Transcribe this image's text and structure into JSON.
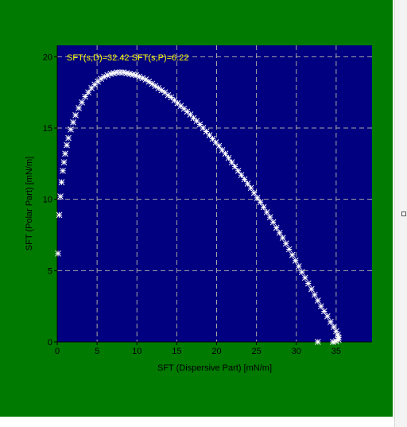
{
  "colors": {
    "panel_background": "#007a00",
    "plot_background": "#000080",
    "marker_color": "#ffffff",
    "annotation_color": "#ffff00",
    "grid_color": "#a8a8a8",
    "axis_text_color": "#000000"
  },
  "chart_data": {
    "type": "scatter",
    "title": "",
    "annotation": "SFT(s,D)=32.42  SFT(s,P)=6.22",
    "xlabel": "SFT (Dispersive Part) [mN/m]",
    "ylabel": "SFT (Polar Part) [mN/m]",
    "xlim": [
      0,
      39.5
    ],
    "ylim": [
      0,
      20.8
    ],
    "xticks": [
      0,
      5,
      10,
      15,
      20,
      25,
      30,
      35
    ],
    "yticks": [
      0,
      5,
      10,
      15,
      20
    ],
    "grid": true,
    "grid_style": "dashed",
    "marker": "asterisk",
    "series": [
      {
        "points": [
          [
            0.1,
            6.2
          ],
          [
            0.25,
            8.9
          ],
          [
            0.4,
            10.2
          ],
          [
            0.55,
            11.2
          ],
          [
            0.7,
            12.0
          ],
          [
            0.85,
            12.6
          ],
          [
            1.0,
            13.2
          ],
          [
            1.2,
            13.8
          ],
          [
            1.4,
            14.3
          ],
          [
            1.7,
            14.9
          ],
          [
            2.0,
            15.4
          ],
          [
            2.3,
            15.9
          ],
          [
            2.7,
            16.4
          ],
          [
            3.1,
            16.8
          ],
          [
            3.5,
            17.2
          ],
          [
            3.9,
            17.5
          ],
          [
            4.3,
            17.8
          ],
          [
            4.7,
            18.05
          ],
          [
            5.1,
            18.25
          ],
          [
            5.5,
            18.45
          ],
          [
            5.9,
            18.6
          ],
          [
            6.3,
            18.7
          ],
          [
            6.7,
            18.8
          ],
          [
            7.1,
            18.85
          ],
          [
            7.5,
            18.9
          ],
          [
            7.9,
            18.9
          ],
          [
            8.3,
            18.9
          ],
          [
            8.7,
            18.85
          ],
          [
            9.1,
            18.8
          ],
          [
            9.5,
            18.75
          ],
          [
            9.9,
            18.7
          ],
          [
            10.3,
            18.6
          ],
          [
            10.7,
            18.5
          ],
          [
            11.1,
            18.4
          ],
          [
            11.5,
            18.25
          ],
          [
            11.9,
            18.1
          ],
          [
            12.3,
            17.95
          ],
          [
            12.7,
            17.8
          ],
          [
            13.1,
            17.65
          ],
          [
            13.5,
            17.5
          ],
          [
            13.9,
            17.3
          ],
          [
            14.3,
            17.15
          ],
          [
            14.7,
            16.95
          ],
          [
            15.1,
            16.75
          ],
          [
            15.5,
            16.55
          ],
          [
            15.9,
            16.35
          ],
          [
            16.3,
            16.15
          ],
          [
            16.7,
            15.95
          ],
          [
            17.1,
            15.7
          ],
          [
            17.5,
            15.5
          ],
          [
            17.9,
            15.25
          ],
          [
            18.3,
            15.0
          ],
          [
            18.7,
            14.75
          ],
          [
            19.1,
            14.5
          ],
          [
            19.5,
            14.25
          ],
          [
            19.9,
            14.0
          ],
          [
            20.3,
            13.75
          ],
          [
            20.7,
            13.45
          ],
          [
            21.1,
            13.2
          ],
          [
            21.5,
            12.9
          ],
          [
            21.9,
            12.6
          ],
          [
            22.3,
            12.3
          ],
          [
            22.7,
            12.0
          ],
          [
            23.1,
            11.7
          ],
          [
            23.5,
            11.4
          ],
          [
            23.9,
            11.1
          ],
          [
            24.3,
            10.8
          ],
          [
            24.7,
            10.45
          ],
          [
            25.1,
            10.1
          ],
          [
            25.5,
            9.8
          ],
          [
            25.9,
            9.45
          ],
          [
            26.3,
            9.1
          ],
          [
            26.7,
            8.75
          ],
          [
            27.1,
            8.4
          ],
          [
            27.5,
            8.0
          ],
          [
            27.9,
            7.65
          ],
          [
            28.3,
            7.3
          ],
          [
            28.7,
            6.9
          ],
          [
            29.1,
            6.5
          ],
          [
            29.5,
            6.1
          ],
          [
            29.9,
            5.7
          ],
          [
            30.3,
            5.3
          ],
          [
            30.7,
            4.9
          ],
          [
            31.1,
            4.5
          ],
          [
            31.5,
            4.1
          ],
          [
            31.9,
            3.7
          ],
          [
            32.3,
            3.3
          ],
          [
            32.7,
            2.9
          ],
          [
            33.1,
            2.5
          ],
          [
            33.5,
            2.15
          ],
          [
            33.9,
            1.8
          ],
          [
            34.3,
            1.4
          ],
          [
            34.7,
            1.05
          ],
          [
            35.0,
            0.75
          ],
          [
            35.2,
            0.5
          ],
          [
            35.3,
            0.3
          ],
          [
            35.3,
            0.15
          ],
          [
            35.0,
            0.05
          ],
          [
            34.6,
            0.0
          ],
          [
            32.7,
            0.0
          ]
        ]
      }
    ]
  }
}
